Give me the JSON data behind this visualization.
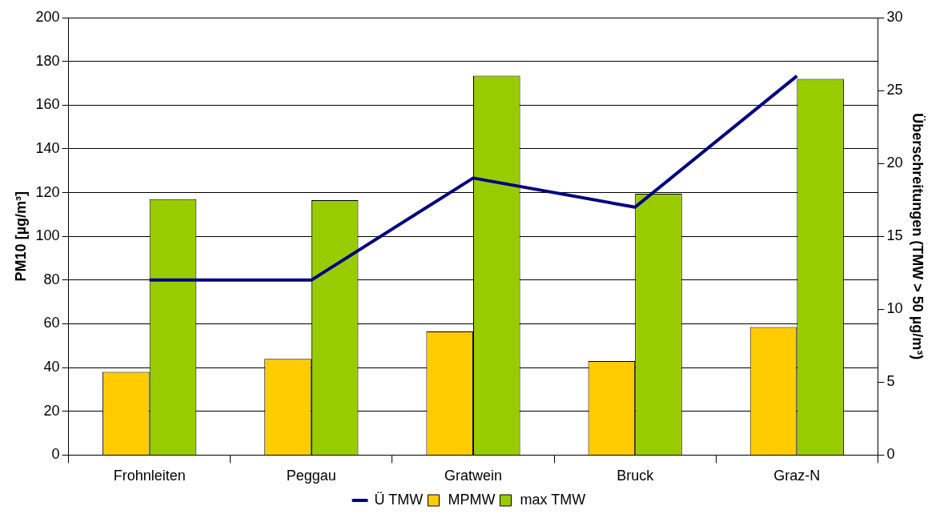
{
  "chart_data": {
    "type": "bar",
    "categories": [
      "Frohnleiten",
      "Peggau",
      "Gratwein",
      "Bruck",
      "Graz-N"
    ],
    "ylabel": "PM10 [µg/m³]",
    "y2label": "Überschreitungen (TMW > 50 µg/m³)",
    "series": [
      {
        "name": "MPMW",
        "color": "#ffcc00",
        "values": [
          38,
          44,
          56.5,
          43,
          58.5
        ]
      },
      {
        "name": "max TMW",
        "color": "#99cc00",
        "values": [
          117,
          116.5,
          173.5,
          119.5,
          172
        ]
      },
      {
        "name": "Ü TMW",
        "type": "line",
        "axis": "y2",
        "color": "#000080",
        "values": [
          12,
          12,
          19,
          17,
          26
        ]
      }
    ],
    "ylim": [
      0,
      200
    ],
    "yticks": [
      0,
      20,
      40,
      60,
      80,
      100,
      120,
      140,
      160,
      180,
      200
    ],
    "y2lim": [
      0,
      30
    ],
    "y2ticks": [
      0,
      5,
      10,
      15,
      20,
      25,
      30
    ],
    "grid": "y",
    "legend": "bottom",
    "marker": "none",
    "line_style": "solid"
  }
}
